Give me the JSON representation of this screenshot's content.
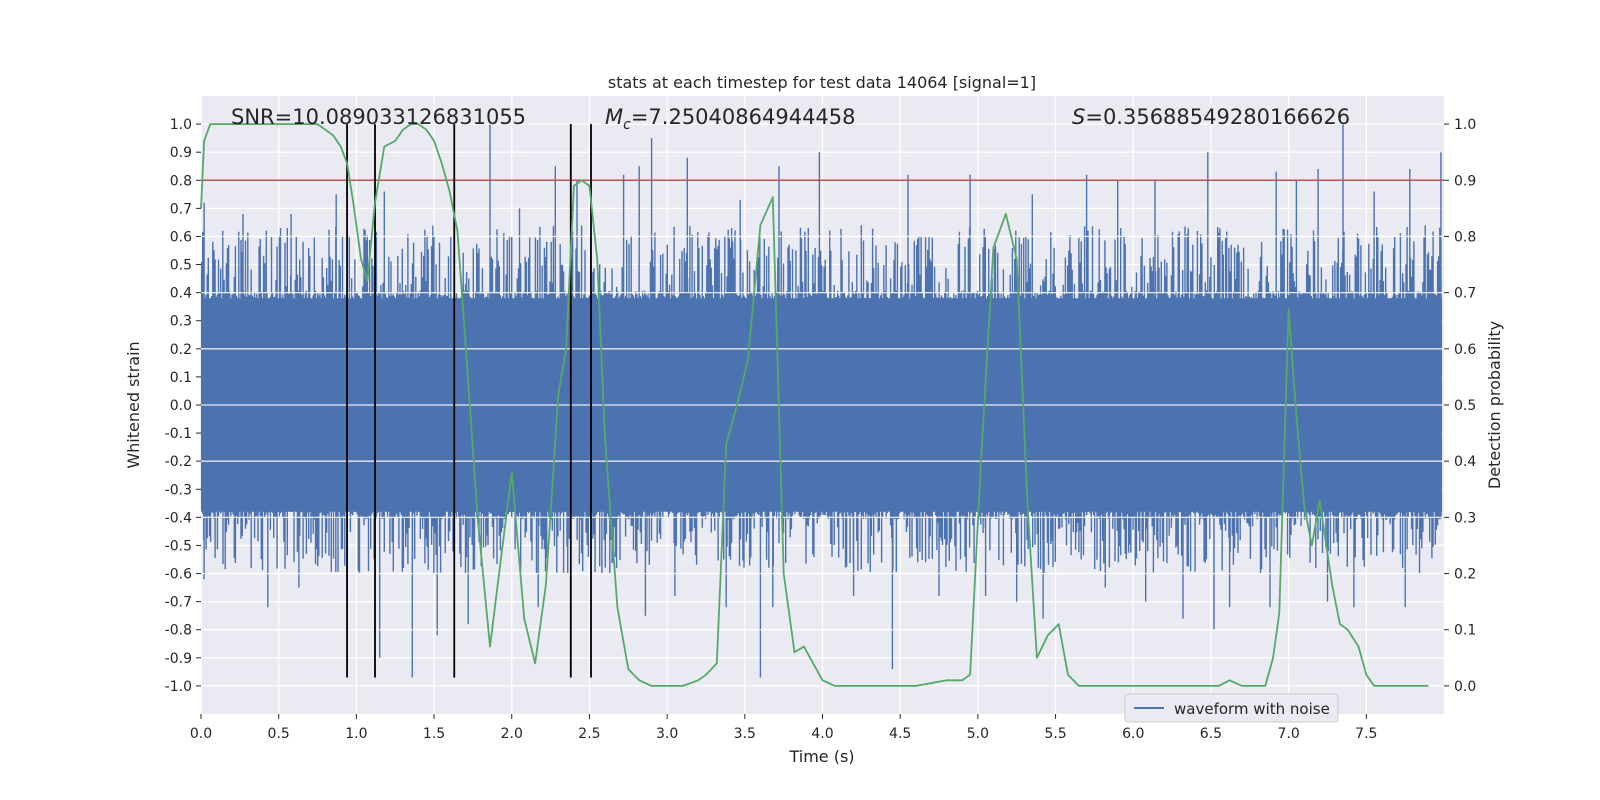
{
  "chart_data": {
    "type": "line",
    "title": "stats at each timestep for test data 14064 [signal=1]",
    "xlabel": "Time (s)",
    "ylabel": "Whitened strain",
    "y2label": "Detection probability",
    "xlim": [
      0.0,
      8.0
    ],
    "ylim": [
      -1.1,
      1.1
    ],
    "y2lim": [
      -0.05,
      1.05
    ],
    "x_ticks": [
      "0.0",
      "0.5",
      "1.0",
      "1.5",
      "2.0",
      "2.5",
      "3.0",
      "3.5",
      "4.0",
      "4.5",
      "5.0",
      "5.5",
      "6.0",
      "6.5",
      "7.0",
      "7.5"
    ],
    "y_ticks": [
      "1.0",
      "0.9",
      "0.8",
      "0.7",
      "0.6",
      "0.5",
      "0.4",
      "0.3",
      "0.2",
      "0.1",
      "0.0",
      "-0.1",
      "-0.2",
      "-0.3",
      "-0.4",
      "-0.5",
      "-0.6",
      "-0.7",
      "-0.8",
      "-0.9",
      "-1.0"
    ],
    "y2_ticks": [
      "1.0",
      "0.9",
      "0.8",
      "0.7",
      "0.6",
      "0.5",
      "0.4",
      "0.3",
      "0.2",
      "0.1",
      "0.0"
    ],
    "grid": true,
    "legend": {
      "placement": "lower-right",
      "entries": [
        "waveform with noise"
      ]
    },
    "annotations": {
      "snr_label": "SNR=10.089033126831055",
      "mc_symbol": "M",
      "mc_subscript": "c",
      "mc_value": "=7.25040864944458",
      "s_symbol": "S",
      "s_value": "=0.35688549280166626"
    },
    "threshold_y2": 0.9,
    "event_lines_x": [
      0.94,
      1.12,
      1.63,
      2.38,
      2.51
    ],
    "series": [
      {
        "name": "waveform with noise",
        "color": "#4c72b0",
        "axis": "left",
        "envelope": {
          "typical_upper": 0.4,
          "typical_lower": -0.4
        },
        "peaks_up": [
          [
            0.02,
            0.72
          ],
          [
            0.14,
            0.62
          ],
          [
            0.27,
            0.68
          ],
          [
            0.42,
            0.62
          ],
          [
            0.58,
            0.68
          ],
          [
            0.87,
            0.75
          ],
          [
            1.18,
            0.76
          ],
          [
            1.86,
            1.0
          ],
          [
            2.05,
            0.7
          ],
          [
            2.28,
            0.85
          ],
          [
            2.42,
            0.8
          ],
          [
            2.72,
            0.82
          ],
          [
            2.82,
            0.85
          ],
          [
            2.9,
            0.95
          ],
          [
            3.13,
            0.88
          ],
          [
            3.47,
            0.73
          ],
          [
            3.72,
            0.85
          ],
          [
            3.98,
            0.9
          ],
          [
            4.25,
            0.64
          ],
          [
            4.55,
            0.82
          ],
          [
            4.95,
            0.82
          ],
          [
            5.35,
            0.75
          ],
          [
            5.7,
            0.82
          ],
          [
            5.9,
            0.8
          ],
          [
            6.14,
            0.8
          ],
          [
            6.48,
            0.9
          ],
          [
            6.92,
            0.83
          ],
          [
            7.05,
            0.8
          ],
          [
            7.19,
            0.84
          ],
          [
            7.35,
            1.0
          ],
          [
            7.55,
            0.76
          ],
          [
            7.78,
            0.84
          ],
          [
            7.98,
            0.9
          ]
        ],
        "peaks_down": [
          [
            0.02,
            -0.62
          ],
          [
            0.43,
            -0.72
          ],
          [
            0.63,
            -0.65
          ],
          [
            0.94,
            -0.69
          ],
          [
            1.02,
            -0.6
          ],
          [
            1.15,
            -0.9
          ],
          [
            1.36,
            -0.97
          ],
          [
            1.52,
            -0.82
          ],
          [
            1.72,
            -0.78
          ],
          [
            2.17,
            -0.72
          ],
          [
            2.36,
            -0.6
          ],
          [
            2.86,
            -0.75
          ],
          [
            3.05,
            -0.68
          ],
          [
            3.38,
            -0.72
          ],
          [
            3.6,
            -0.97
          ],
          [
            3.68,
            -0.72
          ],
          [
            4.2,
            -0.68
          ],
          [
            4.45,
            -0.94
          ],
          [
            4.75,
            -0.68
          ],
          [
            5.05,
            -0.68
          ],
          [
            5.25,
            -0.7
          ],
          [
            5.42,
            -0.76
          ],
          [
            5.82,
            -0.65
          ],
          [
            6.08,
            -0.7
          ],
          [
            6.32,
            -0.76
          ],
          [
            6.52,
            -0.8
          ],
          [
            6.62,
            -0.72
          ],
          [
            6.88,
            -0.72
          ],
          [
            7.25,
            -0.7
          ],
          [
            7.42,
            -0.72
          ],
          [
            7.75,
            -0.72
          ]
        ]
      },
      {
        "name": "detection probability",
        "color": "#55a868",
        "axis": "right",
        "x": [
          0.0,
          0.02,
          0.06,
          0.12,
          0.2,
          0.3,
          0.4,
          0.5,
          0.6,
          0.7,
          0.75,
          0.8,
          0.85,
          0.9,
          0.94,
          0.98,
          1.03,
          1.07,
          1.12,
          1.18,
          1.25,
          1.3,
          1.35,
          1.4,
          1.45,
          1.5,
          1.55,
          1.6,
          1.65,
          1.7,
          1.78,
          1.86,
          1.95,
          2.0,
          2.08,
          2.15,
          2.22,
          2.3,
          2.35,
          2.4,
          2.45,
          2.5,
          2.55,
          2.6,
          2.68,
          2.75,
          2.82,
          2.9,
          3.0,
          3.1,
          3.2,
          3.25,
          3.32,
          3.38,
          3.45,
          3.52,
          3.6,
          3.68,
          3.75,
          3.82,
          3.88,
          3.94,
          4.0,
          4.08,
          4.2,
          4.4,
          4.6,
          4.8,
          4.9,
          4.95,
          5.02,
          5.1,
          5.18,
          5.25,
          5.32,
          5.38,
          5.45,
          5.52,
          5.58,
          5.65,
          5.75,
          5.85,
          6.0,
          6.2,
          6.4,
          6.55,
          6.62,
          6.7,
          6.78,
          6.85,
          6.9,
          6.94,
          7.0,
          7.05,
          7.1,
          7.15,
          7.2,
          7.28,
          7.33,
          7.38,
          7.45,
          7.5,
          7.55,
          7.7,
          7.9
        ],
        "y": [
          0.85,
          0.97,
          1.0,
          1.0,
          1.0,
          1.0,
          1.0,
          1.0,
          1.0,
          1.0,
          1.0,
          0.99,
          0.98,
          0.96,
          0.93,
          0.86,
          0.76,
          0.72,
          0.86,
          0.96,
          0.97,
          0.99,
          1.0,
          1.0,
          0.99,
          0.97,
          0.93,
          0.88,
          0.81,
          0.62,
          0.3,
          0.07,
          0.27,
          0.38,
          0.12,
          0.04,
          0.18,
          0.52,
          0.6,
          0.89,
          0.9,
          0.89,
          0.76,
          0.44,
          0.14,
          0.03,
          0.01,
          0.0,
          0.0,
          0.0,
          0.01,
          0.02,
          0.04,
          0.43,
          0.5,
          0.58,
          0.82,
          0.87,
          0.2,
          0.06,
          0.07,
          0.04,
          0.01,
          0.0,
          0.0,
          0.0,
          0.0,
          0.01,
          0.01,
          0.02,
          0.4,
          0.78,
          0.84,
          0.76,
          0.32,
          0.05,
          0.09,
          0.11,
          0.02,
          0.0,
          0.0,
          0.0,
          0.0,
          0.0,
          0.0,
          0.0,
          0.01,
          0.0,
          0.0,
          0.0,
          0.05,
          0.13,
          0.67,
          0.48,
          0.32,
          0.25,
          0.33,
          0.18,
          0.11,
          0.1,
          0.07,
          0.02,
          0.0,
          0.0,
          0.0
        ]
      },
      {
        "name": "threshold",
        "color": "#c44e52",
        "axis": "right",
        "values": [
          0.9
        ]
      }
    ]
  }
}
